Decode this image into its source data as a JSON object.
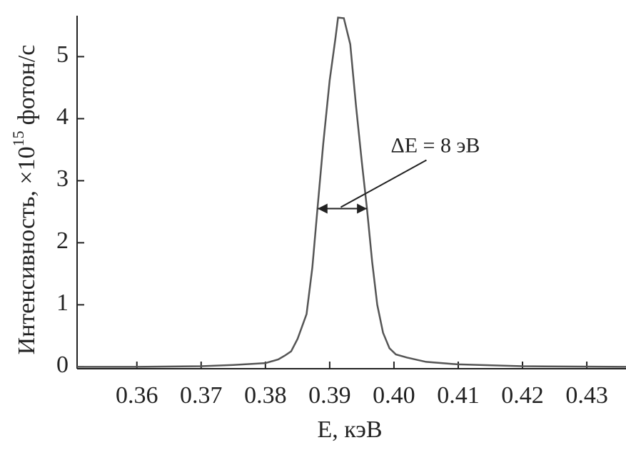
{
  "chart_data": {
    "type": "line",
    "ylabel": "Интенсивность, ×10",
    "ylabel_exponent": "15",
    "ylabel_unit": "фотон/с",
    "xlabel": "E, кэВ",
    "x": [
      0.3507,
      0.36,
      0.37,
      0.375,
      0.38,
      0.382,
      0.383,
      0.384,
      0.385,
      0.3864,
      0.3873,
      0.3881,
      0.389,
      0.39,
      0.3909,
      0.3913,
      0.3922,
      0.3932,
      0.3941,
      0.395,
      0.3958,
      0.3966,
      0.3974,
      0.3983,
      0.3993,
      0.4003,
      0.402,
      0.405,
      0.41,
      0.42,
      0.4361
    ],
    "series": [
      {
        "color": "#555555",
        "values": [
          0,
          0,
          0.01,
          0.03,
          0.06,
          0.12,
          0.18,
          0.25,
          0.45,
          0.85,
          1.6,
          2.55,
          3.6,
          4.62,
          5.3,
          5.63,
          5.62,
          5.2,
          4.2,
          3.3,
          2.55,
          1.7,
          1.0,
          0.55,
          0.3,
          0.2,
          0.15,
          0.08,
          0.04,
          0.01,
          0
        ]
      }
    ],
    "xlim": [
      0.3507,
      0.4361
    ],
    "ylim": [
      -0.03,
      5.66
    ],
    "xticks": [
      0.36,
      0.37,
      0.38,
      0.39,
      {
        "value": 0.4,
        "label": "0.40"
      },
      0.41,
      0.42,
      0.43
    ],
    "yticks": [
      0,
      1,
      2,
      3,
      4,
      5
    ],
    "annotation": {
      "text": "ΔE = 8 эВ",
      "arrow_x": [
        0.3881,
        0.3958
      ],
      "arrow_y": 2.55
    }
  }
}
